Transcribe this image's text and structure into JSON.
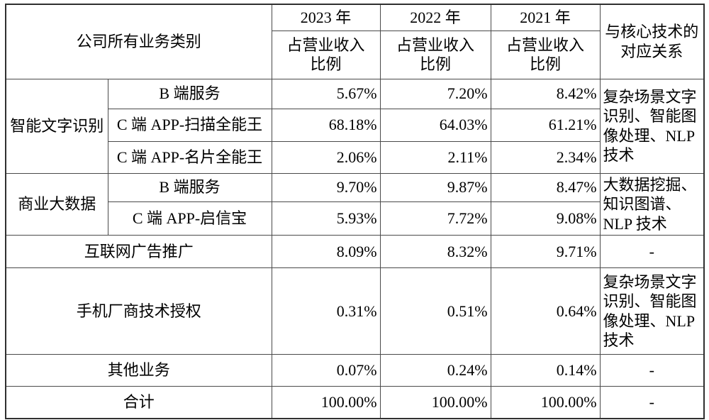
{
  "table": {
    "header": {
      "category": "公司所有业务类别",
      "years": [
        "2023 年",
        "2022 年",
        "2021 年"
      ],
      "ratio_line1": "占营业收入",
      "ratio_line2": "比例",
      "tech": "与核心技术的对应关系"
    },
    "groups": {
      "ocr": {
        "name": "智能文字识别",
        "tech": "复杂场景文字识别、智能图像处理、NLP 技术",
        "rows": [
          {
            "name": "B 端服务",
            "v2023": "5.67%",
            "v2022": "7.20%",
            "v2021": "8.42%"
          },
          {
            "name": "C 端 APP-扫描全能王",
            "v2023": "68.18%",
            "v2022": "64.03%",
            "v2021": "61.21%"
          },
          {
            "name": "C 端 APP-名片全能王",
            "v2023": "2.06%",
            "v2022": "2.11%",
            "v2021": "2.34%"
          }
        ]
      },
      "bigdata": {
        "name": "商业大数据",
        "tech": "大数据挖掘、知识图谱、NLP 技术",
        "rows": [
          {
            "name": "B 端服务",
            "v2023": "9.70%",
            "v2022": "9.87%",
            "v2021": "8.47%"
          },
          {
            "name": "C 端 APP-启信宝",
            "v2023": "5.93%",
            "v2022": "7.72%",
            "v2021": "9.08%"
          }
        ]
      }
    },
    "single_rows": [
      {
        "name": "互联网广告推广",
        "v2023": "8.09%",
        "v2022": "8.32%",
        "v2021": "9.71%",
        "tech": "-"
      },
      {
        "name": "手机厂商技术授权",
        "v2023": "0.31%",
        "v2022": "0.51%",
        "v2021": "0.64%",
        "tech": "复杂场景文字识别、智能图像处理、NLP 技术"
      },
      {
        "name": "其他业务",
        "v2023": "0.07%",
        "v2022": "0.24%",
        "v2021": "0.14%",
        "tech": "-"
      }
    ],
    "total_row": {
      "name": "合计",
      "v2023": "100.00%",
      "v2022": "100.00%",
      "v2021": "100.00%",
      "tech": "-"
    }
  }
}
